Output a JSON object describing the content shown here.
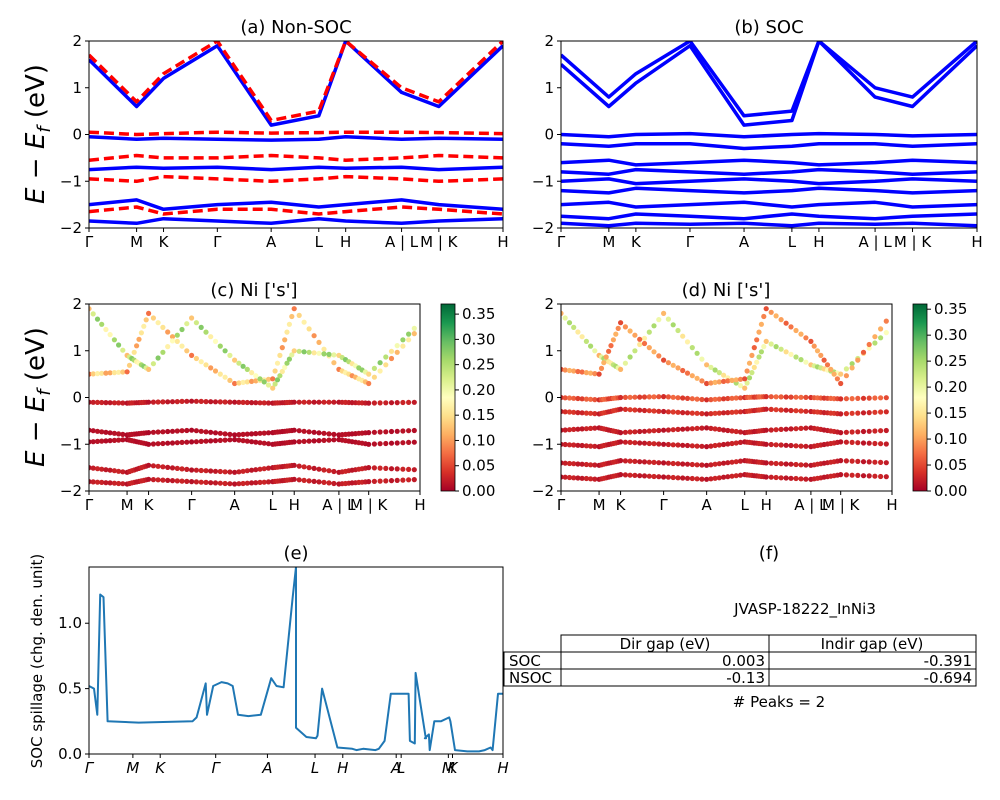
{
  "figure_title": "",
  "chart_data": [
    {
      "id": "a",
      "type": "line",
      "title": "(a) Non-SOC",
      "ylabel": "E − E_f (eV)",
      "ylim": [
        -2,
        2
      ],
      "yticks": [
        "2",
        "1",
        "0",
        "−1",
        "−2"
      ],
      "kpath": [
        "Γ",
        "M",
        "K",
        "Γ",
        "A",
        "L",
        "H",
        "A | L",
        "M | K",
        "H"
      ],
      "series": [
        {
          "color": "#ff0000",
          "style": "dashed",
          "values": [
            0.05,
            0.0,
            0.02,
            0.05,
            0.03,
            0.04,
            0.05,
            0.05,
            0.04,
            0.02
          ]
        },
        {
          "color": "#0000ff",
          "style": "solid",
          "values": [
            -0.05,
            -0.1,
            -0.08,
            -0.1,
            -0.12,
            -0.1,
            -0.05,
            -0.1,
            -0.08,
            -0.1
          ]
        },
        {
          "color": "#ff0000",
          "style": "dashed",
          "values": [
            -0.55,
            -0.45,
            -0.5,
            -0.5,
            -0.45,
            -0.5,
            -0.55,
            -0.5,
            -0.45,
            -0.5
          ]
        },
        {
          "color": "#0000ff",
          "style": "solid",
          "values": [
            -0.75,
            -0.7,
            -0.72,
            -0.7,
            -0.75,
            -0.7,
            -0.72,
            -0.7,
            -0.75,
            -0.7
          ]
        },
        {
          "color": "#ff0000",
          "style": "dashed",
          "values": [
            -0.95,
            -1.0,
            -0.9,
            -0.95,
            -1.0,
            -0.95,
            -0.9,
            -0.95,
            -1.0,
            -0.95
          ]
        },
        {
          "color": "#0000ff",
          "style": "solid",
          "values": [
            -1.5,
            -1.4,
            -1.6,
            -1.5,
            -1.45,
            -1.55,
            -1.5,
            -1.4,
            -1.5,
            -1.6
          ]
        },
        {
          "color": "#ff0000",
          "style": "dashed",
          "values": [
            -1.65,
            -1.55,
            -1.7,
            -1.6,
            -1.6,
            -1.7,
            -1.65,
            -1.55,
            -1.6,
            -1.7
          ]
        },
        {
          "color": "#0000ff",
          "style": "solid",
          "values": [
            -1.85,
            -1.9,
            -1.8,
            -1.85,
            -1.9,
            -1.8,
            -1.85,
            -1.9,
            -1.85,
            -1.8
          ]
        },
        {
          "color": "#0000ff",
          "style": "solid",
          "values": [
            1.6,
            0.6,
            1.2,
            1.9,
            0.2,
            0.4,
            2.0,
            0.9,
            0.6,
            1.9
          ]
        },
        {
          "color": "#ff0000",
          "style": "dashed",
          "values": [
            1.7,
            0.7,
            1.3,
            2.0,
            0.3,
            0.5,
            2.0,
            1.0,
            0.7,
            2.0
          ]
        }
      ]
    },
    {
      "id": "b",
      "type": "line",
      "title": "(b) SOC",
      "ylim": [
        -2,
        2
      ],
      "yticks": [
        "2",
        "1",
        "0",
        "−1",
        "−2"
      ],
      "kpath": [
        "Γ",
        "M",
        "K",
        "Γ",
        "A",
        "L",
        "H",
        "A | L",
        "M | K",
        "H"
      ],
      "series": [
        {
          "color": "#0000ff",
          "style": "solid",
          "values": [
            0.0,
            -0.05,
            0.0,
            0.02,
            -0.05,
            0.0,
            0.02,
            0.0,
            -0.03,
            0.0
          ]
        },
        {
          "color": "#0000ff",
          "style": "solid",
          "values": [
            -0.2,
            -0.25,
            -0.2,
            -0.2,
            -0.3,
            -0.25,
            -0.2,
            -0.2,
            -0.25,
            -0.2
          ]
        },
        {
          "color": "#0000ff",
          "style": "solid",
          "values": [
            -0.6,
            -0.55,
            -0.65,
            -0.6,
            -0.55,
            -0.6,
            -0.65,
            -0.6,
            -0.55,
            -0.6
          ]
        },
        {
          "color": "#0000ff",
          "style": "solid",
          "values": [
            -0.8,
            -0.85,
            -0.75,
            -0.8,
            -0.85,
            -0.8,
            -0.75,
            -0.8,
            -0.85,
            -0.8
          ]
        },
        {
          "color": "#0000ff",
          "style": "solid",
          "values": [
            -1.0,
            -0.95,
            -1.05,
            -1.0,
            -0.95,
            -1.0,
            -1.05,
            -1.0,
            -0.95,
            -1.0
          ]
        },
        {
          "color": "#0000ff",
          "style": "solid",
          "values": [
            -1.2,
            -1.25,
            -1.15,
            -1.2,
            -1.25,
            -1.2,
            -1.15,
            -1.2,
            -1.25,
            -1.2
          ]
        },
        {
          "color": "#0000ff",
          "style": "solid",
          "values": [
            -1.5,
            -1.45,
            -1.55,
            -1.5,
            -1.45,
            -1.55,
            -1.5,
            -1.45,
            -1.55,
            -1.5
          ]
        },
        {
          "color": "#0000ff",
          "style": "solid",
          "values": [
            -1.75,
            -1.8,
            -1.7,
            -1.75,
            -1.8,
            -1.7,
            -1.75,
            -1.8,
            -1.75,
            -1.7
          ]
        },
        {
          "color": "#0000ff",
          "style": "solid",
          "values": [
            -1.9,
            -1.95,
            -1.9,
            -1.92,
            -1.9,
            -1.95,
            -1.9,
            -1.92,
            -1.9,
            -1.95
          ]
        },
        {
          "color": "#0000ff",
          "style": "solid",
          "values": [
            1.5,
            0.6,
            1.1,
            1.9,
            0.2,
            0.3,
            2.0,
            0.8,
            0.6,
            1.9
          ]
        },
        {
          "color": "#0000ff",
          "style": "solid",
          "values": [
            1.7,
            0.8,
            1.3,
            2.0,
            0.4,
            0.5,
            2.0,
            1.0,
            0.8,
            2.0
          ]
        }
      ]
    },
    {
      "id": "c",
      "type": "scatter",
      "title": "(c)  Ni ['s']",
      "ylabel": "E − E_f (eV)",
      "ylim": [
        -2,
        2
      ],
      "yticks": [
        "2",
        "1",
        "0",
        "−1",
        "−2"
      ],
      "kpath": [
        "Γ",
        "M",
        "K",
        "Γ",
        "A",
        "L",
        "H",
        "A | L",
        "M | K",
        "H"
      ],
      "colorbar": {
        "range": [
          0.0,
          0.37
        ],
        "ticks": [
          "0.35",
          "0.30",
          "0.25",
          "0.20",
          "0.15",
          "0.10",
          "0.05",
          "0.00"
        ]
      },
      "bands": [
        {
          "values": [
            -0.1,
            -0.12,
            -0.1,
            -0.08,
            -0.1,
            -0.12,
            -0.1,
            -0.1,
            -0.12,
            -0.1
          ],
          "weight": 0.02
        },
        {
          "values": [
            -0.7,
            -0.8,
            -0.75,
            -0.7,
            -0.8,
            -0.75,
            -0.7,
            -0.8,
            -0.75,
            -0.7
          ],
          "weight": 0.01
        },
        {
          "values": [
            -0.95,
            -0.9,
            -1.0,
            -0.95,
            -0.9,
            -1.0,
            -0.95,
            -0.9,
            -1.0,
            -0.95
          ],
          "weight": 0.01
        },
        {
          "values": [
            -1.5,
            -1.6,
            -1.45,
            -1.55,
            -1.6,
            -1.5,
            -1.45,
            -1.6,
            -1.5,
            -1.55
          ],
          "weight": 0.02
        },
        {
          "values": [
            -1.8,
            -1.85,
            -1.75,
            -1.8,
            -1.85,
            -1.8,
            -1.75,
            -1.85,
            -1.8,
            -1.75
          ],
          "weight": 0.02
        },
        {
          "values": [
            0.5,
            0.55,
            1.8,
            0.9,
            0.3,
            0.4,
            1.9,
            0.6,
            0.3,
            1.5
          ],
          "weight": 0.12
        },
        {
          "values": [
            1.9,
            0.9,
            0.6,
            1.7,
            0.8,
            0.2,
            1.0,
            0.9,
            0.5,
            1.6
          ],
          "weight": 0.2
        }
      ]
    },
    {
      "id": "d",
      "type": "scatter",
      "title": "(d) Ni ['s']",
      "ylim": [
        -2,
        2
      ],
      "yticks": [
        "2",
        "1",
        "0",
        "−1",
        "−2"
      ],
      "kpath": [
        "Γ",
        "M",
        "K",
        "Γ",
        "A",
        "L",
        "H",
        "A | L",
        "M | K",
        "H"
      ],
      "colorbar": {
        "range": [
          0.0,
          0.36
        ],
        "ticks": [
          "0.35",
          "0.30",
          "0.25",
          "0.20",
          "0.15",
          "0.10",
          "0.05",
          "0.00"
        ]
      },
      "bands": [
        {
          "values": [
            0.0,
            -0.05,
            0.0,
            0.02,
            -0.05,
            0.0,
            0.02,
            0.0,
            -0.03,
            0.0
          ],
          "weight": 0.05
        },
        {
          "values": [
            -0.3,
            -0.35,
            -0.25,
            -0.3,
            -0.35,
            -0.3,
            -0.25,
            -0.3,
            -0.35,
            -0.3
          ],
          "weight": 0.03
        },
        {
          "values": [
            -0.7,
            -0.65,
            -0.75,
            -0.7,
            -0.65,
            -0.75,
            -0.7,
            -0.65,
            -0.75,
            -0.7
          ],
          "weight": 0.02
        },
        {
          "values": [
            -1.0,
            -1.05,
            -0.95,
            -1.0,
            -1.05,
            -0.95,
            -1.0,
            -1.05,
            -0.95,
            -1.0
          ],
          "weight": 0.02
        },
        {
          "values": [
            -1.4,
            -1.45,
            -1.35,
            -1.4,
            -1.45,
            -1.35,
            -1.4,
            -1.45,
            -1.35,
            -1.4
          ],
          "weight": 0.02
        },
        {
          "values": [
            -1.7,
            -1.75,
            -1.65,
            -1.7,
            -1.75,
            -1.65,
            -1.7,
            -1.75,
            -1.65,
            -1.7
          ],
          "weight": 0.02
        },
        {
          "values": [
            1.8,
            0.9,
            0.6,
            1.8,
            0.7,
            0.2,
            1.2,
            0.7,
            0.5,
            1.5
          ],
          "weight": 0.18
        },
        {
          "values": [
            0.6,
            0.5,
            1.6,
            0.8,
            0.3,
            0.4,
            1.9,
            1.2,
            0.3,
            1.8
          ],
          "weight": 0.08
        }
      ]
    },
    {
      "id": "e",
      "type": "line",
      "title": "(e)",
      "ylabel": "SOC spillage (chg. den. unit)",
      "ylim": [
        0,
        1.43
      ],
      "yticks": [
        "1.0",
        "0.5",
        "0.0"
      ],
      "kpath": [
        "Γ",
        "M",
        "K",
        "Γ",
        "A",
        "L",
        "H",
        "A",
        "L",
        "M",
        "K",
        "H"
      ],
      "series": [
        {
          "color": "#1f77b4",
          "x": [
            0.0,
            0.012,
            0.02,
            0.027,
            0.035,
            0.045,
            0.12,
            0.25,
            0.26,
            0.282,
            0.285,
            0.3,
            0.32,
            0.335,
            0.347,
            0.36,
            0.385,
            0.415,
            0.44,
            0.453,
            0.47,
            0.492,
            0.5,
            0.5,
            0.525,
            0.548,
            0.552,
            0.563,
            0.6,
            0.636,
            0.646,
            0.662,
            0.692,
            0.7,
            0.714,
            0.729,
            0.744,
            0.76,
            0.772,
            0.775,
            0.787,
            0.789,
            0.812,
            0.814,
            0.811,
            0.821,
            0.823,
            0.834,
            0.85,
            0.87,
            0.873,
            0.884,
            0.914,
            0.942,
            0.956,
            0.97,
            0.975,
            0.988,
            1.0
          ],
          "values": [
            0.52,
            0.5,
            0.3,
            1.22,
            1.2,
            0.25,
            0.24,
            0.25,
            0.28,
            0.54,
            0.3,
            0.52,
            0.55,
            0.54,
            0.52,
            0.3,
            0.29,
            0.3,
            0.58,
            0.52,
            0.51,
            1.2,
            1.43,
            0.2,
            0.13,
            0.12,
            0.14,
            0.5,
            0.05,
            0.04,
            0.03,
            0.04,
            0.03,
            0.04,
            0.1,
            0.46,
            0.46,
            0.46,
            0.46,
            0.1,
            0.08,
            0.62,
            0.15,
            0.12,
            0.12,
            0.15,
            0.03,
            0.25,
            0.25,
            0.28,
            0.25,
            0.03,
            0.02,
            0.02,
            0.03,
            0.05,
            0.03,
            0.46,
            0.46
          ]
        }
      ]
    }
  ],
  "panel_f": {
    "title": "(f)",
    "name": "JVASP-18222_InNi3",
    "headers": [
      "Dir gap (eV)",
      "Indir gap (eV)"
    ],
    "rows": [
      {
        "label": "SOC",
        "dir": "0.003",
        "indir": "-0.391"
      },
      {
        "label": "NSOC",
        "dir": "-0.13",
        "indir": "-0.694"
      }
    ],
    "peaks": "# Peaks = 2"
  }
}
